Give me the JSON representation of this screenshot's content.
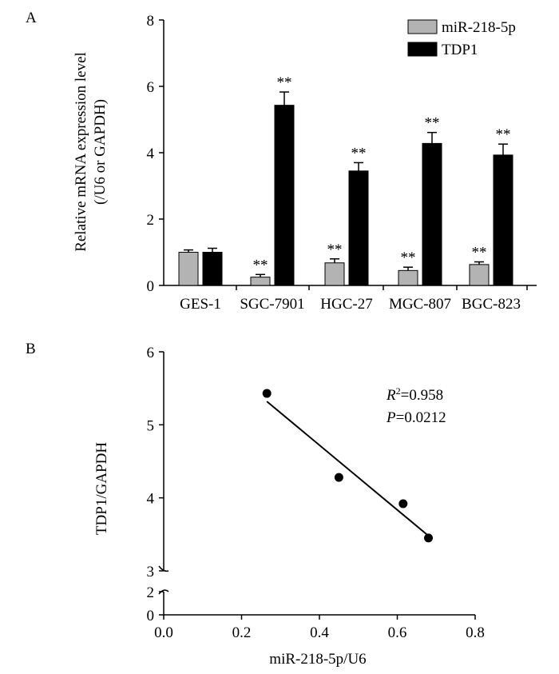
{
  "panels": {
    "a": {
      "label": "A"
    },
    "b": {
      "label": "B"
    }
  },
  "chart_data": [
    {
      "type": "bar",
      "panel": "A",
      "ylabel_line1": "Relative mRNA expression level",
      "ylabel_line2": "(/U6 or GAPDH)",
      "categories": [
        "GES-1",
        "SGC-7901",
        "HGC-27",
        "MGC-807",
        "BGC-823"
      ],
      "ylim": [
        0,
        8
      ],
      "yticks": [
        0,
        2,
        4,
        6,
        8
      ],
      "legend_position": "top-right",
      "series": [
        {
          "name": "miR-218-5p",
          "color": "#b3b3b3",
          "values": [
            1.0,
            0.25,
            0.68,
            0.45,
            0.63
          ],
          "errors": [
            0.07,
            0.08,
            0.12,
            0.1,
            0.08
          ],
          "annotations": [
            "",
            "**",
            "**",
            "**",
            "**"
          ]
        },
        {
          "name": "TDP1",
          "color": "#000000",
          "values": [
            1.0,
            5.43,
            3.45,
            4.28,
            3.93
          ],
          "errors": [
            0.12,
            0.4,
            0.25,
            0.33,
            0.33
          ],
          "annotations": [
            "",
            "**",
            "**",
            "**",
            "**"
          ]
        }
      ],
      "grid": false
    },
    {
      "type": "scatter",
      "panel": "B",
      "xlabel": "miR-218-5p/U6",
      "ylabel": "TDP1/GAPDH",
      "xlim": [
        0.0,
        0.8
      ],
      "xticks": [
        "0.0",
        "0.2",
        "0.4",
        "0.6",
        "0.8"
      ],
      "y_lower_ticks": [
        0,
        2
      ],
      "y_upper_ticks": [
        3,
        4,
        5,
        6
      ],
      "y_axis_broken": true,
      "points": [
        {
          "x": 0.265,
          "y": 5.43
        },
        {
          "x": 0.45,
          "y": 4.28
        },
        {
          "x": 0.615,
          "y": 3.92
        },
        {
          "x": 0.68,
          "y": 3.45
        }
      ],
      "fit_line": {
        "x": [
          0.265,
          0.68
        ],
        "y": [
          5.32,
          3.48
        ]
      },
      "annotation": {
        "r_symbol": "R",
        "r_superscript": "2",
        "r_value": "=0.958",
        "p_symbol": "P",
        "p_value": "=0.0212"
      },
      "grid": false
    }
  ]
}
